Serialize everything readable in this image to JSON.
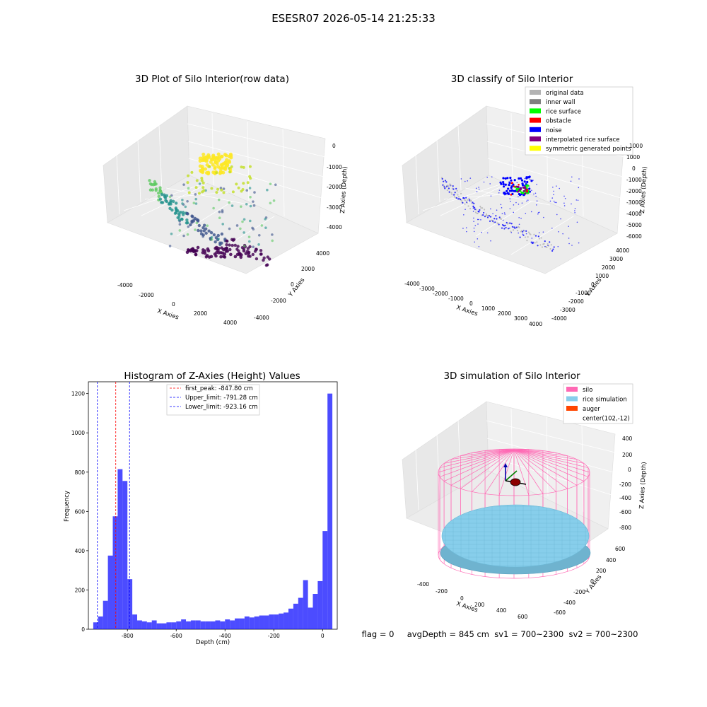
{
  "figure": {
    "suptitle": "ESESR07 2026-05-14 21:25:33",
    "status_line": "flag = 0     avgDepth = 845 cm  sv1 = 700~2300  sv2 = 700~2300"
  },
  "panels": {
    "raw": {
      "title": "3D Plot of Silo Interior(row data)",
      "xlabel": "X Axies",
      "ylabel": "Y Axies",
      "zlabel": "Z Axies (Depth)",
      "xticks": [
        "-4000",
        "-2000",
        "0",
        "2000",
        "4000"
      ],
      "yticks": [
        "-4000",
        "-2000",
        "0",
        "2000",
        "4000"
      ],
      "zticks": [
        "0",
        "-1000",
        "-2000",
        "-3000",
        "-4000"
      ]
    },
    "classify": {
      "title": "3D classify of Silo Interior",
      "xlabel": "X Axies",
      "ylabel": "Y Axies",
      "zlabel": "Z Axies (Depth)",
      "xticks": [
        "-4000",
        "-3000",
        "-2000",
        "-1000",
        "0",
        "1000",
        "2000",
        "3000",
        "4000"
      ],
      "yticks": [
        "-4000",
        "-3000",
        "-2000",
        "-1000",
        "0",
        "1000",
        "2000",
        "3000",
        "4000"
      ],
      "zticks": [
        "1000",
        "0",
        "-1000",
        "-2000",
        "-3000",
        "-4000",
        "-5000",
        "-6000"
      ],
      "legend": [
        {
          "label": "original data",
          "color": "#b3b3b3"
        },
        {
          "label": "inner wall",
          "color": "#808080"
        },
        {
          "label": "rice surface",
          "color": "#00ff00"
        },
        {
          "label": "obstacle",
          "color": "#ff0000"
        },
        {
          "label": "noise",
          "color": "#0000ff"
        },
        {
          "label": "interpolated rice surface",
          "color": "#800080"
        },
        {
          "label": "symmetric generated points",
          "color": "#ffff00"
        }
      ]
    },
    "simulation": {
      "title": "3D simulation of Silo Interior",
      "xlabel": "X Axies",
      "ylabel": "Y Axies",
      "zlabel": "Z Axies (Depth)",
      "xticks": [
        "-400",
        "-200",
        "0",
        "200",
        "400",
        "600"
      ],
      "yticks": [
        "600",
        "400",
        "200",
        "0",
        "-200",
        "-400",
        "-600"
      ],
      "zticks": [
        "400",
        "200",
        "0",
        "-200",
        "-400",
        "-600",
        "-800"
      ],
      "legend": [
        {
          "label": "silo",
          "color": "#ff69b4"
        },
        {
          "label": "rice simulation",
          "color": "#87ceeb"
        },
        {
          "label": "auger",
          "color": "#ff4500"
        },
        {
          "label": "center(102,-12)",
          "color": ""
        }
      ]
    }
  },
  "chart_data": {
    "type": "bar",
    "title": "Histogram of Z-Axies (Height) Values",
    "xlabel": "Depth (cm)",
    "ylabel": "Frequency",
    "xlim": [
      -960,
      60
    ],
    "ylim": [
      0,
      1260
    ],
    "xticks": [
      -800,
      -600,
      -400,
      -200,
      0
    ],
    "yticks": [
      0,
      200,
      400,
      600,
      800,
      1000,
      1200
    ],
    "bin_edges_start": -940,
    "bin_width": 20,
    "values": [
      35,
      65,
      145,
      375,
      575,
      815,
      755,
      255,
      75,
      45,
      40,
      35,
      45,
      30,
      30,
      35,
      35,
      40,
      50,
      40,
      45,
      45,
      40,
      40,
      40,
      45,
      40,
      50,
      45,
      55,
      55,
      65,
      60,
      65,
      70,
      70,
      75,
      75,
      80,
      85,
      105,
      130,
      160,
      250,
      110,
      180,
      245,
      500,
      1200
    ],
    "color": "#0000ff",
    "vlines": [
      {
        "label": "first_peak: -847.80 cm",
        "value": -847.8,
        "color": "#ff0000"
      },
      {
        "label": "Upper_limit: -791.28 cm",
        "value": -791.28,
        "color": "#0000ff"
      },
      {
        "label": "Lower_limit: -923.16 cm",
        "value": -923.16,
        "color": "#0000ff"
      }
    ],
    "legend_position": "upper-center"
  }
}
